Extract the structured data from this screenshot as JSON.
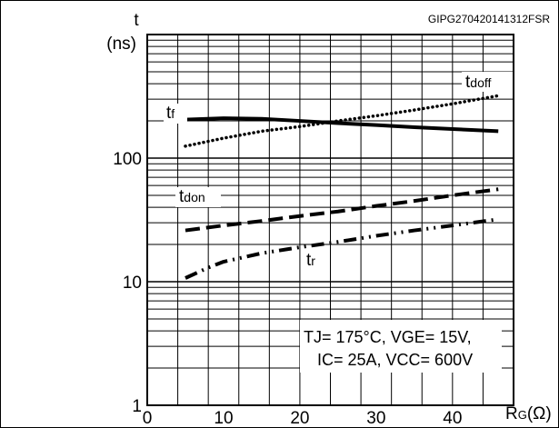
{
  "figure_id": "GIPG270420141312FSR",
  "chart_data": {
    "type": "line",
    "x_label_main": "R",
    "x_label_sub": "G",
    "x_label_unit": "(Ω)",
    "y_label_main": "t",
    "y_label_unit": "(ns)",
    "y_scale": "log",
    "xlim": [
      0,
      48
    ],
    "ylim": [
      1,
      1000
    ],
    "x_ticks": [
      "0",
      "10",
      "20",
      "30",
      "40"
    ],
    "x_tick_values": [
      0,
      10,
      20,
      30,
      40
    ],
    "y_ticks": [
      "1",
      "10",
      "100"
    ],
    "y_tick_values": [
      1,
      10,
      100
    ],
    "grid": true,
    "series": [
      {
        "name": "tdoff",
        "label_main": "t",
        "label_sub": "doff",
        "style": "dotted",
        "x": [
          5,
          10,
          15,
          20,
          25,
          30,
          35,
          40,
          46
        ],
        "y": [
          125,
          145,
          165,
          180,
          200,
          220,
          245,
          275,
          320
        ]
      },
      {
        "name": "tf",
        "label_main": "t",
        "label_sub": "f",
        "style": "solid",
        "x": [
          5,
          10,
          15,
          20,
          25,
          30,
          35,
          40,
          46
        ],
        "y": [
          205,
          210,
          208,
          200,
          192,
          185,
          178,
          172,
          165
        ]
      },
      {
        "name": "tdon",
        "label_main": "t",
        "label_sub": "don",
        "style": "dashed",
        "x": [
          5,
          10,
          15,
          20,
          25,
          30,
          35,
          40,
          46
        ],
        "y": [
          26,
          28.5,
          31,
          34,
          37,
          41,
          45,
          50,
          56
        ]
      },
      {
        "name": "tr",
        "label_main": "t",
        "label_sub": "r",
        "style": "dashdot",
        "x": [
          5,
          8,
          10,
          15,
          20,
          25,
          30,
          35,
          40,
          46
        ],
        "y": [
          10.7,
          13,
          14.5,
          17,
          19,
          21,
          23.5,
          26,
          28.5,
          32
        ]
      }
    ],
    "annotation": {
      "line1": "TJ= 175°C, VGE= 15V,",
      "line2": "IC= 25A, VCC= 600V"
    }
  }
}
